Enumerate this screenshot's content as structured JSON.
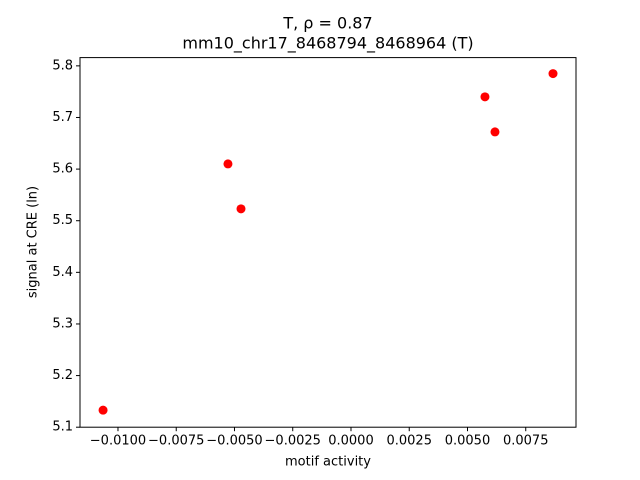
{
  "chart_data": {
    "type": "scatter",
    "title": "T, ρ = 0.87",
    "subtitle": "mm10_chr17_8468794_8468964 (T)",
    "xlabel": "motif activity",
    "ylabel": "signal at CRE (ln)",
    "series": [
      {
        "color": "#ff0000",
        "x": [
          -0.01064,
          -0.00528,
          -0.00472,
          0.00575,
          0.00618,
          0.00867
        ],
        "values": [
          5.133,
          5.61,
          5.523,
          5.74,
          5.672,
          5.785
        ]
      }
    ],
    "xlim": [
      -0.01163,
      0.009657
    ],
    "ylim": [
      5.1,
      5.816
    ],
    "xticks": [
      {
        "value": -0.01,
        "label": "−0.0100"
      },
      {
        "value": -0.0075,
        "label": "−0.0075"
      },
      {
        "value": -0.005,
        "label": "−0.0050"
      },
      {
        "value": -0.0025,
        "label": "−0.0025"
      },
      {
        "value": 0,
        "label": "0.0000"
      },
      0.0025,
      {
        "value": 0.005,
        "label": "0.0050"
      },
      0.0075
    ],
    "yticks": [
      5.1,
      5.2,
      5.3,
      5.4,
      5.5,
      5.6,
      5.7,
      5.8
    ]
  }
}
